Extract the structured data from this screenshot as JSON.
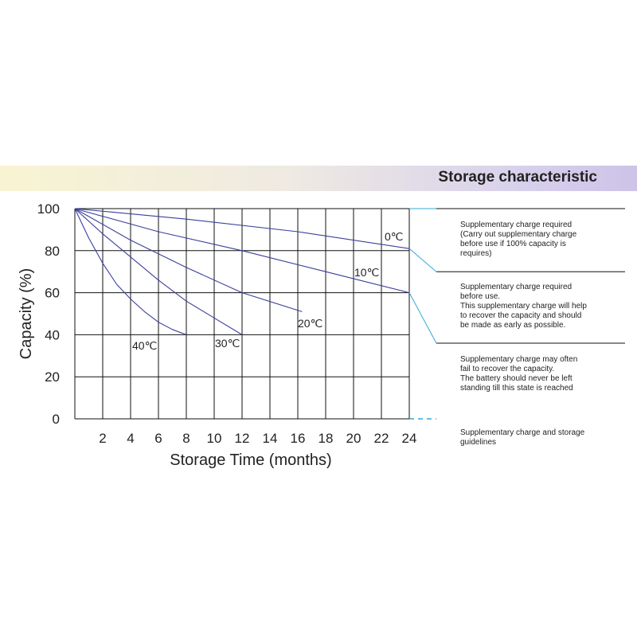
{
  "banner": {
    "title": "Storage characteristic"
  },
  "chart_data": {
    "type": "line",
    "title": "Storage characteristic",
    "xlabel": "Storage Time (months)",
    "ylabel": "Capacity  (%)",
    "xlim": [
      0,
      24
    ],
    "ylim": [
      0,
      100
    ],
    "x_ticks": [
      2,
      4,
      6,
      8,
      10,
      12,
      14,
      16,
      18,
      20,
      22,
      24
    ],
    "y_ticks": [
      0,
      20,
      40,
      60,
      80,
      100
    ],
    "grid": true,
    "series": [
      {
        "name": "0℃",
        "points": [
          [
            0,
            100
          ],
          [
            8,
            95
          ],
          [
            16,
            89
          ],
          [
            24,
            81
          ]
        ]
      },
      {
        "name": "10℃",
        "points": [
          [
            0,
            100
          ],
          [
            6,
            89
          ],
          [
            12,
            80
          ],
          [
            18,
            70
          ],
          [
            24,
            60
          ]
        ]
      },
      {
        "name": "20℃",
        "points": [
          [
            0,
            100
          ],
          [
            4,
            85
          ],
          [
            8,
            72
          ],
          [
            12,
            60
          ],
          [
            16.3,
            51
          ]
        ]
      },
      {
        "name": "30℃",
        "points": [
          [
            0,
            100
          ],
          [
            2,
            88
          ],
          [
            4,
            77
          ],
          [
            6,
            66
          ],
          [
            8,
            56
          ],
          [
            10,
            48
          ],
          [
            12,
            40
          ]
        ]
      },
      {
        "name": "40℃",
        "points": [
          [
            0,
            100
          ],
          [
            1,
            86
          ],
          [
            2,
            74
          ],
          [
            3,
            64
          ],
          [
            4,
            57
          ],
          [
            5,
            51
          ],
          [
            6,
            46
          ],
          [
            7,
            42.5
          ],
          [
            8,
            40
          ]
        ]
      }
    ]
  },
  "notes": [
    {
      "lines": [
        "Supplementary charge required",
        "(Carry out supplementary charge",
        "before use if 100% capacity is",
        "requires)"
      ]
    },
    {
      "lines": [
        "Supplementary charge required",
        "before use.",
        "This supplementary charge will help",
        "to recover the capacity and should",
        "be made  as early as possible."
      ]
    },
    {
      "lines": [
        "Supplementary charge may often",
        "fail to recover the capacity.",
        "The battery should never be left",
        "standing till this state is reached"
      ]
    },
    {
      "lines": [
        "Supplementary charge and storage",
        "guidelines"
      ]
    }
  ],
  "colors": {
    "series": "#3a3f9a",
    "grid": "#111111",
    "zone": "#35a8d8"
  }
}
